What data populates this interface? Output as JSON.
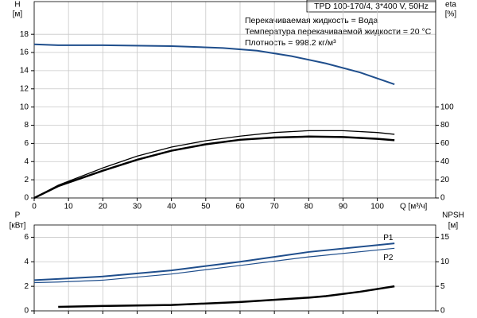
{
  "chart_data": [
    {
      "type": "line",
      "title": "TPD 100-170/4, 3*400 V, 50Hz",
      "annotations": [
        "Перекачиваемая жидкость = Вода",
        "Температура перекачиваемой жидкости = 20 °C",
        "Плотность = 998.2 кг/м³"
      ],
      "ylabel": "H",
      "yunit": "[м]",
      "y2label": "eta",
      "y2unit": "[%]",
      "xlabel": "Q [м³/ч]",
      "xlim": [
        0,
        117
      ],
      "xticks": [
        0,
        10,
        20,
        30,
        40,
        50,
        60,
        70,
        80,
        90,
        100
      ],
      "ylim": [
        0,
        21.6
      ],
      "yticks": [
        0,
        2,
        4,
        6,
        8,
        10,
        12,
        14,
        16,
        18
      ],
      "y2lim": [
        0,
        216
      ],
      "y2ticks": [
        0,
        20,
        40,
        60,
        80,
        100
      ],
      "grid": true,
      "series": [
        {
          "color": "#1f4e8c",
          "line_width": 2,
          "axis": "y",
          "x": [
            0,
            7,
            20,
            40,
            55,
            65,
            75,
            85,
            95,
            105
          ],
          "values": [
            16.9,
            16.8,
            16.8,
            16.7,
            16.5,
            16.2,
            15.6,
            14.8,
            13.8,
            12.5
          ]
        },
        {
          "color": "#000000",
          "line_width": 1.3,
          "axis": "y2",
          "x": [
            0,
            7,
            20,
            30,
            40,
            50,
            60,
            70,
            80,
            90,
            100,
            105
          ],
          "values": [
            0,
            14,
            33,
            46,
            56,
            63,
            68,
            72,
            74,
            74,
            72,
            70
          ]
        },
        {
          "color": "#000000",
          "line_width": 2.5,
          "axis": "y2",
          "x": [
            0,
            7,
            20,
            30,
            40,
            50,
            60,
            70,
            80,
            90,
            100,
            105
          ],
          "values": [
            0,
            13,
            30,
            42,
            52,
            59,
            64,
            66.5,
            67.5,
            67,
            65,
            63.5
          ]
        }
      ]
    },
    {
      "type": "line",
      "ylabel": "P",
      "yunit": "[кВт]",
      "y2label": "NPSH",
      "y2unit": "[м]",
      "xlim": [
        0,
        117
      ],
      "xticks": [
        0,
        10,
        20,
        30,
        40,
        50,
        60,
        70,
        80,
        90,
        100
      ],
      "ylim": [
        0,
        7
      ],
      "yticks": [
        0,
        2,
        4,
        6
      ],
      "y2lim": [
        0,
        17.5
      ],
      "y2ticks": [
        0,
        5,
        10,
        15
      ],
      "grid": true,
      "series": [
        {
          "name": "P1",
          "color": "#1f4e8c",
          "line_width": 2,
          "axis": "y",
          "x": [
            0,
            7,
            20,
            40,
            60,
            80,
            105
          ],
          "values": [
            2.5,
            2.6,
            2.8,
            3.3,
            4.0,
            4.8,
            5.5
          ]
        },
        {
          "name": "P2",
          "color": "#1f4e8c",
          "line_width": 1.2,
          "axis": "y",
          "x": [
            0,
            7,
            20,
            40,
            60,
            80,
            105
          ],
          "values": [
            2.3,
            2.35,
            2.5,
            3.0,
            3.7,
            4.4,
            5.1
          ]
        },
        {
          "color": "#000000",
          "line_width": 2.5,
          "axis": "y2",
          "x": [
            7,
            20,
            40,
            60,
            80,
            85,
            95,
            105
          ],
          "values": [
            0.8,
            1.0,
            1.2,
            1.8,
            2.7,
            3.0,
            3.9,
            5.0
          ]
        }
      ]
    }
  ]
}
